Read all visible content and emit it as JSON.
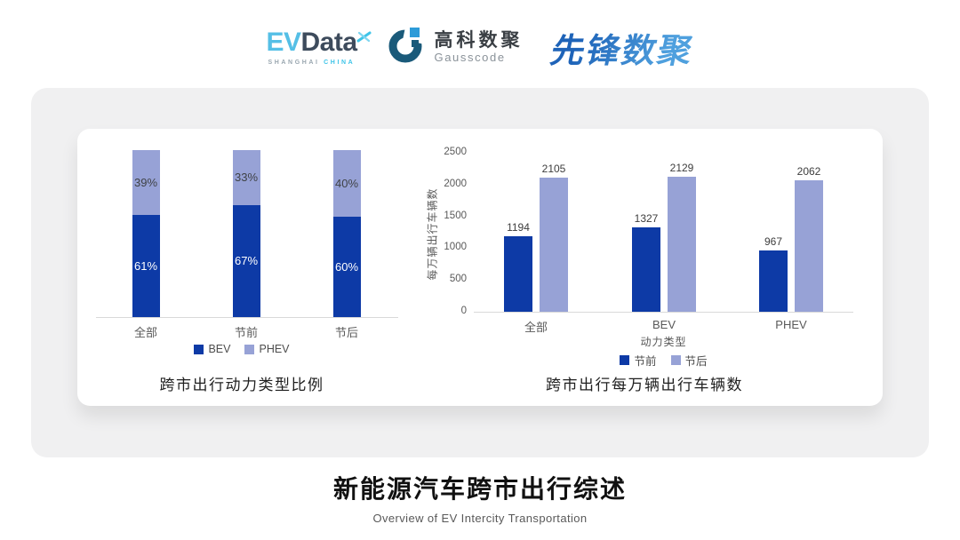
{
  "header": {
    "evdata": {
      "part1": "EV",
      "part2": "Data",
      "sub1": "SHANGHAI",
      "sub2": "CHINA"
    },
    "gausscode": {
      "name_cn": "高科数聚",
      "name_en": "Gausscode"
    },
    "pioneer": {
      "name": "先锋数聚"
    }
  },
  "colors": {
    "series_dark": "#0D3AA6",
    "series_light": "#97A2D6",
    "axis_line": "#D9D9D9",
    "panel_bg": "#F0F0F1",
    "evdata_cyan": "#3EC4E8",
    "gausscode_navy": "#1A5A7A",
    "gausscode_blue": "#2D9BD8"
  },
  "footer": {
    "title": "新能源汽车跨市出行综述",
    "subtitle": "Overview of EV Intercity Transportation"
  },
  "chart_data": [
    {
      "type": "bar",
      "variant": "stacked-100",
      "title": "跨市出行动力类型比例",
      "categories": [
        "全部",
        "节前",
        "节后"
      ],
      "series": [
        {
          "name": "BEV",
          "color": "#0D3AA6",
          "values": [
            61,
            67,
            60
          ]
        },
        {
          "name": "PHEV",
          "color": "#97A2D6",
          "values": [
            39,
            33,
            40
          ]
        }
      ],
      "value_suffix": "%",
      "ylim": [
        0,
        100
      ],
      "grid": false,
      "legend_position": "bottom"
    },
    {
      "type": "bar",
      "variant": "grouped",
      "title": "跨市出行每万辆出行车辆数",
      "categories": [
        "全部",
        "BEV",
        "PHEV"
      ],
      "series": [
        {
          "name": "节前",
          "color": "#0D3AA6",
          "values": [
            1194,
            1327,
            967
          ]
        },
        {
          "name": "节后",
          "color": "#97A2D6",
          "values": [
            2105,
            2129,
            2062
          ]
        }
      ],
      "xlabel": "动力类型",
      "ylabel": "每万辆出行车辆数",
      "yticks": [
        0,
        500,
        1000,
        1500,
        2000,
        2500
      ],
      "ylim": [
        0,
        2500
      ],
      "grid": false,
      "legend_position": "bottom"
    }
  ]
}
